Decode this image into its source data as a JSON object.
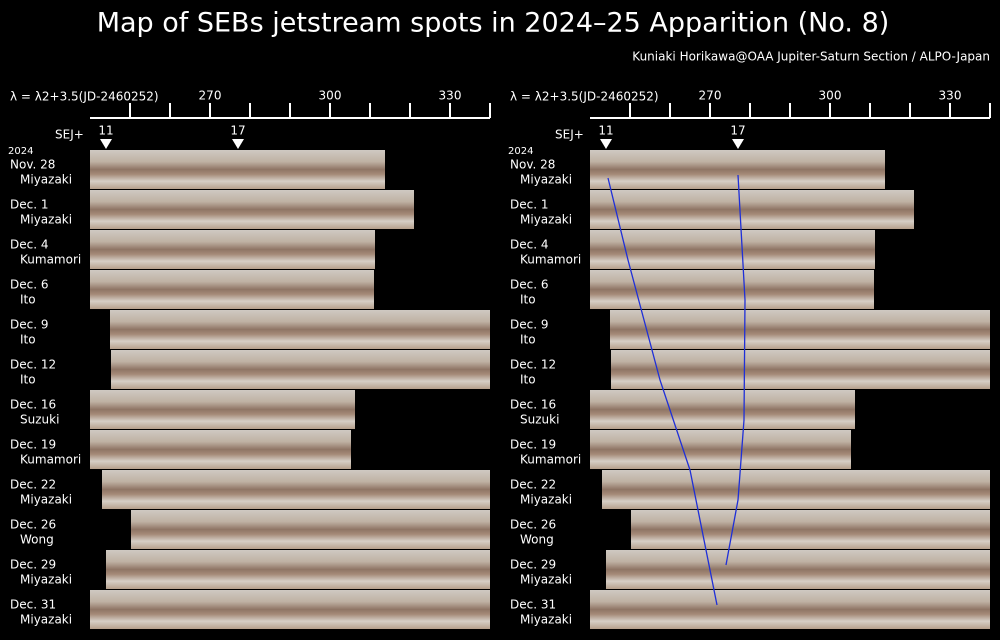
{
  "title": "Map of SEBs jetstream spots in 2024–25 Apparition (No. 8)",
  "credit": "Kuniaki Horikawa@OAA Jupiter-Saturn Section / ALPO-Japan",
  "axis": {
    "formula": "λ = λ2+3.5(JD-2460252)",
    "xlim": [
      240,
      340
    ],
    "xticks": [
      270,
      300,
      330
    ],
    "minor_xticks": [
      250,
      260,
      280,
      290,
      310,
      320,
      340
    ]
  },
  "spot_header": "SEJ+",
  "spots": [
    {
      "label": "11",
      "lon": 244
    },
    {
      "label": "17",
      "lon": 277
    }
  ],
  "year": "2024",
  "rows": [
    {
      "date": "Nov. 28",
      "observer": "Miyazaki"
    },
    {
      "date": "Dec. 1",
      "observer": "Miyazaki"
    },
    {
      "date": "Dec. 4",
      "observer": "Kumamori"
    },
    {
      "date": "Dec. 6",
      "observer": "Ito"
    },
    {
      "date": "Dec. 9",
      "observer": "Ito"
    },
    {
      "date": "Dec. 12",
      "observer": "Ito"
    },
    {
      "date": "Dec. 16",
      "observer": "Suzuki"
    },
    {
      "date": "Dec. 19",
      "observer": "Kumamori"
    },
    {
      "date": "Dec. 22",
      "observer": "Miyazaki"
    },
    {
      "date": "Dec. 26",
      "observer": "Wong"
    },
    {
      "date": "Dec. 29",
      "observer": "Miyazaki"
    },
    {
      "date": "Dec. 31",
      "observer": "Miyazaki"
    }
  ]
}
